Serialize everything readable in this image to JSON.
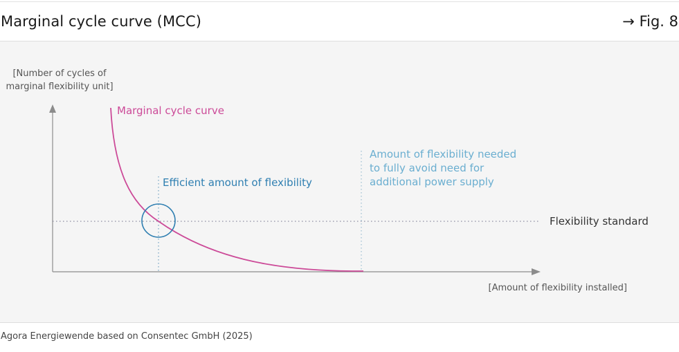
{
  "header": {
    "title": "Marginal cycle curve (MCC)",
    "figure_ref": "→ Fig. 8"
  },
  "diagram": {
    "y_axis_label_line1": "[Number of cycles of",
    "y_axis_label_line2": "marginal flexibility unit]",
    "x_axis_label": "[Amount of flexibility installed]",
    "curve_label": "Marginal cycle curve",
    "efficient_label": "Efficient amount of flexibility",
    "full_avoid_label_line1": "Amount of flexibility needed",
    "full_avoid_label_line2": "to fully avoid need for",
    "full_avoid_label_line3": "additional power supply",
    "standard_label": "Flexibility standard",
    "colors": {
      "curve": "#cc4a98",
      "efficient": "#2f7fb1",
      "full_avoid": "#6aaed0",
      "axis": "#8c8c8c",
      "text": "#333333"
    }
  },
  "footer": {
    "source": "Agora Energiewende based on Consentec GmbH (2025)"
  }
}
